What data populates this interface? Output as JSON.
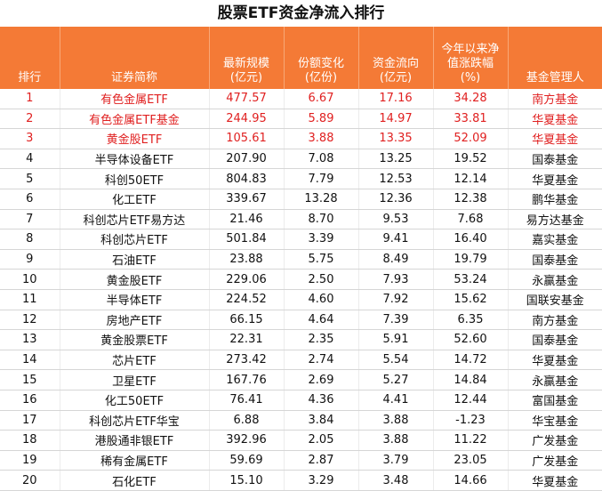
{
  "title": "股票ETF资金净流入排行",
  "headers": [
    {
      "line1": "",
      "line2": "",
      "line3": "排行"
    },
    {
      "line1": "",
      "line2": "",
      "line3": "证券简称"
    },
    {
      "line1": "",
      "line2": "最新规模",
      "line3": "(亿元)"
    },
    {
      "line1": "",
      "line2": "份额变化",
      "line3": "(亿份)"
    },
    {
      "line1": "",
      "line2": "资金流向",
      "line3": "(亿元)"
    },
    {
      "line1": "今年以来净",
      "line2": "值涨跌幅",
      "line3": "(%)"
    },
    {
      "line1": "",
      "line2": "",
      "line3": "基金管理人"
    }
  ],
  "highlight_color": "#e02020",
  "header_color": "#f47a36",
  "rows": [
    {
      "rank": "1",
      "name": "有色金属ETF",
      "scale": "477.57",
      "share": "6.67",
      "flow": "17.16",
      "ytd": "34.28",
      "manager": "南方基金",
      "hot": true
    },
    {
      "rank": "2",
      "name": "有色金属ETF基金",
      "scale": "244.95",
      "share": "5.89",
      "flow": "14.97",
      "ytd": "33.81",
      "manager": "华夏基金",
      "hot": true
    },
    {
      "rank": "3",
      "name": "黄金股ETF",
      "scale": "105.61",
      "share": "3.88",
      "flow": "13.35",
      "ytd": "52.09",
      "manager": "华夏基金",
      "hot": true
    },
    {
      "rank": "4",
      "name": "半导体设备ETF",
      "scale": "207.90",
      "share": "7.08",
      "flow": "13.25",
      "ytd": "19.52",
      "manager": "国泰基金",
      "hot": false
    },
    {
      "rank": "5",
      "name": "科创50ETF",
      "scale": "804.83",
      "share": "7.79",
      "flow": "12.53",
      "ytd": "12.14",
      "manager": "华夏基金",
      "hot": false
    },
    {
      "rank": "6",
      "name": "化工ETF",
      "scale": "339.67",
      "share": "13.28",
      "flow": "12.36",
      "ytd": "12.38",
      "manager": "鹏华基金",
      "hot": false
    },
    {
      "rank": "7",
      "name": "科创芯片ETF易方达",
      "scale": "21.46",
      "share": "8.70",
      "flow": "9.53",
      "ytd": "7.68",
      "manager": "易方达基金",
      "hot": false
    },
    {
      "rank": "8",
      "name": "科创芯片ETF",
      "scale": "501.84",
      "share": "3.39",
      "flow": "9.41",
      "ytd": "16.40",
      "manager": "嘉实基金",
      "hot": false
    },
    {
      "rank": "9",
      "name": "石油ETF",
      "scale": "23.88",
      "share": "5.75",
      "flow": "8.49",
      "ytd": "19.79",
      "manager": "国泰基金",
      "hot": false
    },
    {
      "rank": "10",
      "name": "黄金股ETF",
      "scale": "229.06",
      "share": "2.50",
      "flow": "7.93",
      "ytd": "53.24",
      "manager": "永赢基金",
      "hot": false
    },
    {
      "rank": "11",
      "name": "半导体ETF",
      "scale": "224.52",
      "share": "4.60",
      "flow": "7.92",
      "ytd": "15.62",
      "manager": "国联安基金",
      "hot": false
    },
    {
      "rank": "12",
      "name": "房地产ETF",
      "scale": "66.15",
      "share": "4.64",
      "flow": "7.39",
      "ytd": "6.35",
      "manager": "南方基金",
      "hot": false
    },
    {
      "rank": "13",
      "name": "黄金股票ETF",
      "scale": "22.31",
      "share": "2.35",
      "flow": "5.91",
      "ytd": "52.60",
      "manager": "国泰基金",
      "hot": false
    },
    {
      "rank": "14",
      "name": "芯片ETF",
      "scale": "273.42",
      "share": "2.74",
      "flow": "5.54",
      "ytd": "14.72",
      "manager": "华夏基金",
      "hot": false
    },
    {
      "rank": "15",
      "name": "卫星ETF",
      "scale": "167.76",
      "share": "2.69",
      "flow": "5.27",
      "ytd": "14.84",
      "manager": "永赢基金",
      "hot": false
    },
    {
      "rank": "16",
      "name": "化工50ETF",
      "scale": "76.41",
      "share": "4.36",
      "flow": "4.41",
      "ytd": "12.44",
      "manager": "富国基金",
      "hot": false
    },
    {
      "rank": "17",
      "name": "科创芯片ETF华宝",
      "scale": "6.88",
      "share": "3.84",
      "flow": "3.88",
      "ytd": "-1.23",
      "manager": "华宝基金",
      "hot": false
    },
    {
      "rank": "18",
      "name": "港股通非银ETF",
      "scale": "392.96",
      "share": "2.05",
      "flow": "3.88",
      "ytd": "11.22",
      "manager": "广发基金",
      "hot": false
    },
    {
      "rank": "19",
      "name": "稀有金属ETF",
      "scale": "59.69",
      "share": "2.87",
      "flow": "3.79",
      "ytd": "23.05",
      "manager": "广发基金",
      "hot": false
    },
    {
      "rank": "20",
      "name": "石化ETF",
      "scale": "15.10",
      "share": "3.29",
      "flow": "3.48",
      "ytd": "14.66",
      "manager": "华夏基金",
      "hot": false
    }
  ]
}
